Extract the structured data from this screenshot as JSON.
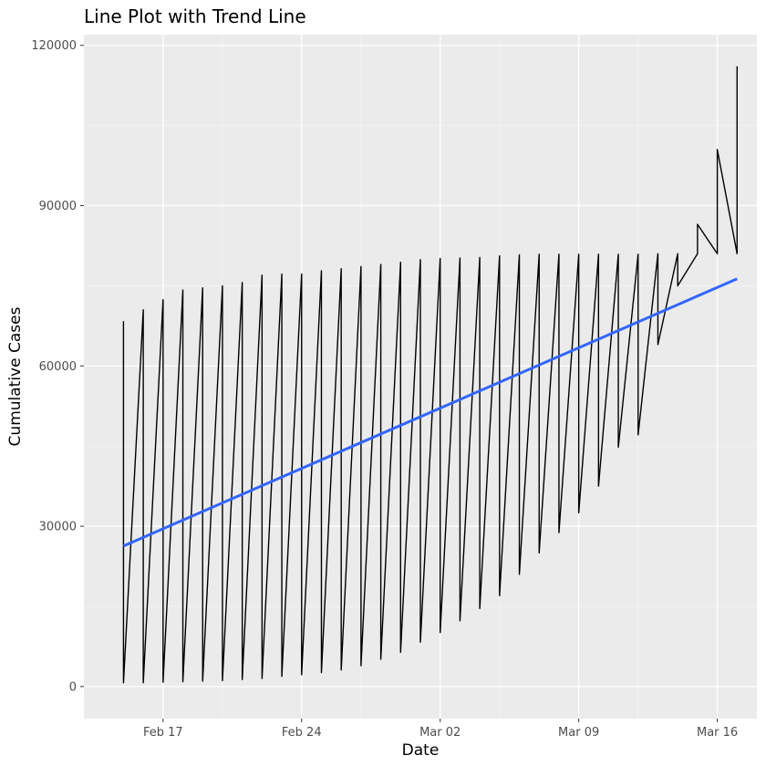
{
  "chart_data": {
    "type": "line",
    "title": "Line Plot with Trend Line",
    "xlabel": "Date",
    "ylabel": "Cumulative Cases",
    "x_ticks": [
      "Feb 17",
      "Feb 24",
      "Mar 02",
      "Mar 09",
      "Mar 16"
    ],
    "y_ticks": [
      "0",
      "30000",
      "60000",
      "90000",
      "120000"
    ],
    "ylim": [
      -6000,
      122000
    ],
    "xlim": [
      "2020-02-13",
      "2020-03-18"
    ],
    "grid": true,
    "series": [
      {
        "x": [
          "2020-02-15",
          "2020-02-15",
          "2020-02-16",
          "2020-02-16",
          "2020-02-17",
          "2020-02-17",
          "2020-02-18",
          "2020-02-18",
          "2020-02-19",
          "2020-02-19",
          "2020-02-20",
          "2020-02-20",
          "2020-02-21",
          "2020-02-21",
          "2020-02-22",
          "2020-02-22",
          "2020-02-23",
          "2020-02-23",
          "2020-02-24",
          "2020-02-24",
          "2020-02-25",
          "2020-02-25",
          "2020-02-26",
          "2020-02-26",
          "2020-02-27",
          "2020-02-27",
          "2020-02-28",
          "2020-02-28",
          "2020-02-29",
          "2020-02-29",
          "2020-03-01",
          "2020-03-01",
          "2020-03-02",
          "2020-03-02",
          "2020-03-03",
          "2020-03-03",
          "2020-03-04",
          "2020-03-04",
          "2020-03-05",
          "2020-03-05",
          "2020-03-06",
          "2020-03-06",
          "2020-03-07",
          "2020-03-07",
          "2020-03-08",
          "2020-03-08",
          "2020-03-09",
          "2020-03-09",
          "2020-03-10",
          "2020-03-10",
          "2020-03-11",
          "2020-03-11",
          "2020-03-12",
          "2020-03-12",
          "2020-03-13",
          "2020-03-13",
          "2020-03-14",
          "2020-03-14",
          "2020-03-15",
          "2020-03-15",
          "2020-03-16",
          "2020-03-16",
          "2020-03-17",
          "2020-03-17"
        ],
        "y": [
          68300,
          700,
          70500,
          700,
          72400,
          800,
          74200,
          900,
          74600,
          1000,
          75000,
          1100,
          75600,
          1300,
          77000,
          1500,
          77200,
          1900,
          77200,
          2200,
          77800,
          2600,
          78200,
          3100,
          78600,
          3900,
          79000,
          5100,
          79400,
          6400,
          79900,
          8300,
          80100,
          10100,
          80200,
          12300,
          80300,
          14600,
          80600,
          17000,
          80800,
          21000,
          80900,
          25000,
          80900,
          28800,
          80900,
          32500,
          80900,
          37500,
          80900,
          44800,
          80900,
          47100,
          81000,
          64000,
          81000,
          75000,
          81000,
          86500,
          81000,
          100500,
          81000,
          116000
        ]
      },
      {
        "name": "trend",
        "x": [
          "2020-02-15",
          "2020-03-17"
        ],
        "y": [
          26300,
          76300
        ],
        "color": "#3366ff"
      }
    ]
  }
}
